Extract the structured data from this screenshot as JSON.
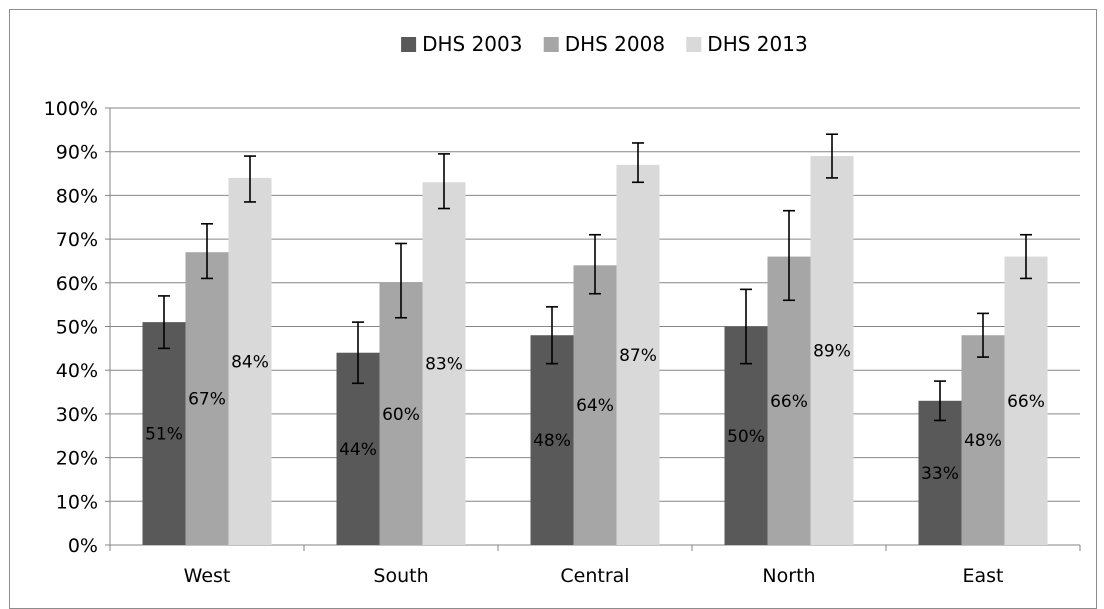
{
  "chart_data": {
    "type": "bar",
    "categories": [
      "West",
      "South",
      "Central",
      "North",
      "East"
    ],
    "series": [
      {
        "name": "DHS 2003",
        "color": "#595959",
        "values": [
          51,
          44,
          48,
          50,
          33
        ],
        "labels": [
          "51%",
          "44%",
          "48%",
          "50%",
          "33%"
        ],
        "error_low": [
          45,
          37,
          41.5,
          41.5,
          28.5
        ],
        "error_high": [
          57,
          51,
          54.5,
          58.5,
          37.5
        ]
      },
      {
        "name": "DHS 2008",
        "color": "#a6a6a6",
        "values": [
          67,
          60,
          64,
          66,
          48
        ],
        "labels": [
          "67%",
          "60%",
          "64%",
          "66%",
          "48%"
        ],
        "error_low": [
          61,
          52,
          57.5,
          56,
          43
        ],
        "error_high": [
          73.5,
          69,
          71,
          76.5,
          53
        ]
      },
      {
        "name": "DHS 2013",
        "color": "#d9d9d9",
        "values": [
          84,
          83,
          87,
          89,
          66
        ],
        "labels": [
          "84%",
          "83%",
          "87%",
          "89%",
          "66%"
        ],
        "error_low": [
          78.5,
          77,
          83,
          84,
          61
        ],
        "error_high": [
          89,
          89.5,
          92,
          94,
          71
        ]
      }
    ],
    "y_ticks": [
      "0%",
      "10%",
      "20%",
      "30%",
      "40%",
      "50%",
      "60%",
      "70%",
      "80%",
      "90%",
      "100%"
    ],
    "ylim": [
      0,
      100
    ],
    "grid": true,
    "legend_position": "top-center",
    "title": "",
    "xlabel": "",
    "ylabel": ""
  }
}
